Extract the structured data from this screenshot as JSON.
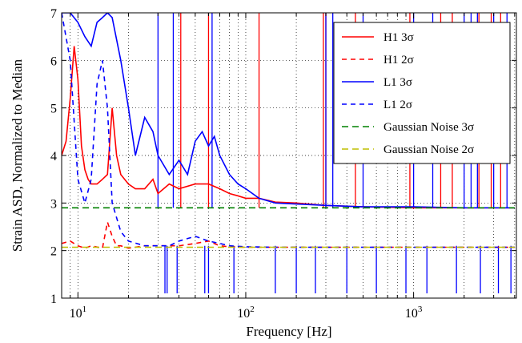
{
  "chart_data": {
    "type": "line",
    "xlabel": "Frequency [Hz]",
    "ylabel": "Strain ASD, Normalized to Median",
    "x_scale": "log",
    "xlim": [
      8,
      4096
    ],
    "ylim": [
      1,
      7
    ],
    "grid": true,
    "legend_position": "top-right",
    "x_tick_labels": [
      {
        "value": 10,
        "base": "10",
        "exp": "1"
      },
      {
        "value": 100,
        "base": "10",
        "exp": "2"
      },
      {
        "value": 1000,
        "base": "10",
        "exp": "3"
      }
    ],
    "y_ticks": [
      1,
      2,
      3,
      4,
      5,
      6,
      7
    ],
    "series": [
      {
        "name": "H1 3σ",
        "color": "#ff0000",
        "dash": "solid",
        "x": [
          8,
          8.5,
          9,
          9.5,
          10,
          10.5,
          11,
          11.5,
          12,
          13,
          14,
          15,
          16,
          17,
          18,
          20,
          22,
          25,
          28,
          30,
          35,
          40,
          50,
          60,
          70,
          80,
          90,
          100,
          120,
          150,
          200,
          300,
          500,
          1000,
          2000,
          4000
        ],
        "y": [
          4.0,
          4.3,
          5.2,
          6.3,
          5.6,
          4.2,
          3.7,
          3.5,
          3.4,
          3.4,
          3.5,
          3.6,
          5.0,
          4.0,
          3.6,
          3.4,
          3.3,
          3.3,
          3.5,
          3.2,
          3.4,
          3.3,
          3.4,
          3.4,
          3.3,
          3.2,
          3.15,
          3.1,
          3.1,
          3.02,
          3.0,
          2.95,
          2.92,
          2.9,
          2.9,
          2.9
        ]
      },
      {
        "name": "H1 2σ",
        "color": "#ff0000",
        "dash": "6,5",
        "x": [
          8,
          9,
          10,
          11,
          12,
          14,
          15,
          16,
          17,
          18,
          20,
          25,
          30,
          40,
          50,
          60,
          70,
          80,
          100,
          150,
          300,
          1000,
          4000
        ],
        "y": [
          2.15,
          2.2,
          2.1,
          2.05,
          2.1,
          2.05,
          2.6,
          2.3,
          2.1,
          2.1,
          2.05,
          2.1,
          2.1,
          2.1,
          2.15,
          2.2,
          2.1,
          2.08,
          2.07,
          2.07,
          2.07,
          2.07,
          2.07
        ]
      },
      {
        "name": "L1 3σ",
        "color": "#0000ff",
        "dash": "solid",
        "x": [
          8,
          9,
          10,
          11,
          12,
          13,
          14,
          15,
          16,
          18,
          20,
          22,
          25,
          28,
          30,
          35,
          40,
          45,
          50,
          55,
          60,
          65,
          70,
          80,
          90,
          100,
          120,
          150,
          200,
          300,
          500,
          1000,
          2000,
          4000
        ],
        "y": [
          7.0,
          7.0,
          6.8,
          6.5,
          6.3,
          6.8,
          6.9,
          7.0,
          6.9,
          6.0,
          5.0,
          4.0,
          4.8,
          4.5,
          4.0,
          3.6,
          3.9,
          3.6,
          4.3,
          4.5,
          4.2,
          4.4,
          4.0,
          3.6,
          3.4,
          3.3,
          3.1,
          3.0,
          2.98,
          2.95,
          2.92,
          2.92,
          2.9,
          2.9
        ]
      },
      {
        "name": "L1 2σ",
        "color": "#0000ff",
        "dash": "6,5",
        "x": [
          8,
          9,
          10,
          11,
          12,
          13,
          14,
          15,
          16,
          18,
          20,
          25,
          30,
          35,
          40,
          50,
          60,
          70,
          80,
          100,
          150,
          300,
          1000,
          4000
        ],
        "y": [
          7.0,
          6.0,
          3.5,
          3.0,
          3.5,
          5.5,
          6.0,
          5.0,
          3.0,
          2.4,
          2.2,
          2.1,
          2.1,
          2.1,
          2.2,
          2.3,
          2.2,
          2.15,
          2.1,
          2.08,
          2.07,
          2.07,
          2.07,
          2.07
        ]
      },
      {
        "name": "Gaussian Noise 3σ",
        "color": "#008000",
        "dash": "8,5",
        "x": [
          8,
          4000
        ],
        "y": [
          2.9,
          2.9
        ]
      },
      {
        "name": "Gaussian Noise 2σ",
        "color": "#bfbf00",
        "dash": "8,5",
        "x": [
          8,
          4000
        ],
        "y": [
          2.07,
          2.07
        ]
      }
    ],
    "spike_lines": [
      {
        "color": "#ff0000",
        "x": [
          41,
          60,
          120,
          290,
          300,
          450,
          950,
          1450,
          1700,
          2450,
          2900,
          3300
        ],
        "y_low": 2.9,
        "y_high": 7.0
      },
      {
        "color": "#0000ff",
        "x": [
          30,
          37,
          63,
          300,
          330,
          500,
          1000,
          1300,
          2000,
          2200,
          2400,
          3000,
          3600
        ],
        "y_low": 2.9,
        "y_high": 7.0
      },
      {
        "color": "#0000ff",
        "x": [
          33,
          34,
          39,
          57,
          60,
          85,
          150,
          200,
          260,
          400,
          600,
          900,
          1200,
          1800,
          2500,
          3200,
          3800
        ],
        "y_low": 2.1,
        "y_high": 1.1
      }
    ]
  }
}
